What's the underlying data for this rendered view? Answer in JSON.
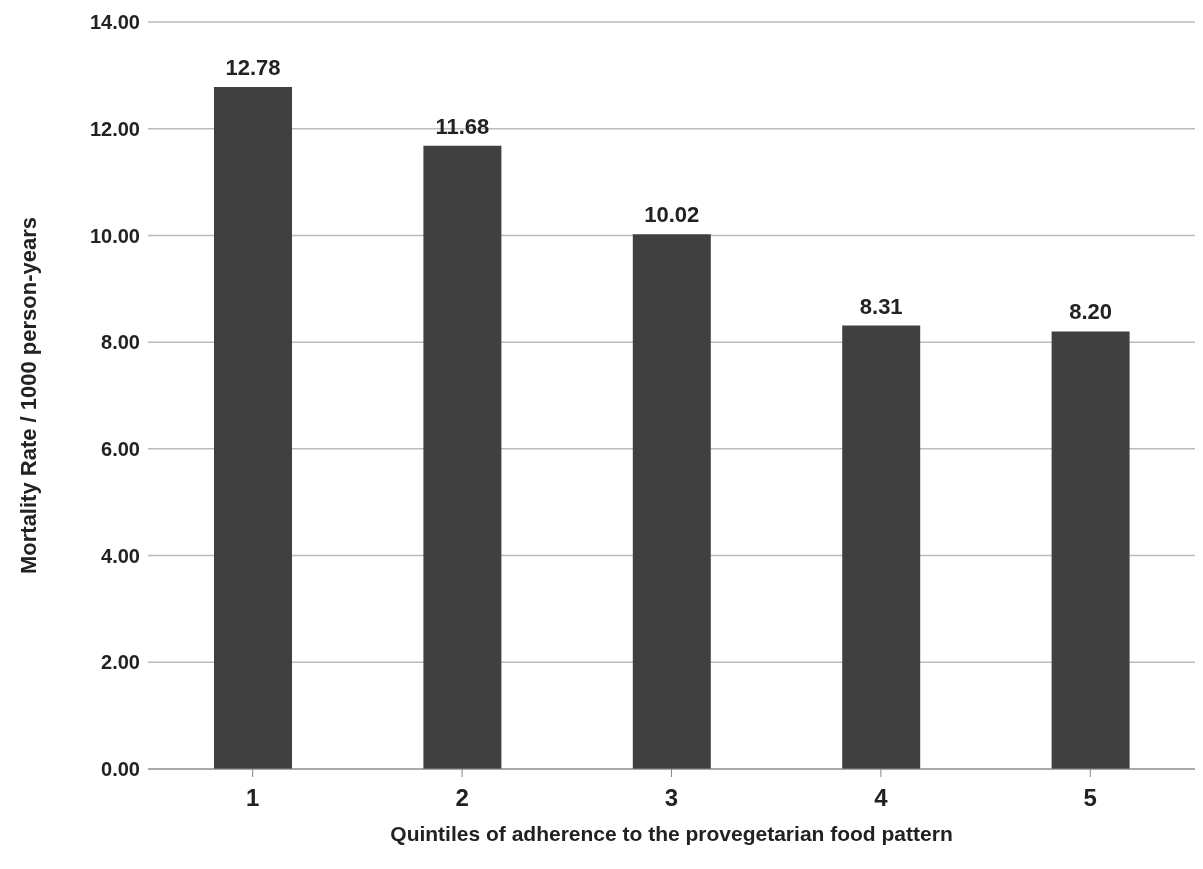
{
  "chart_data": {
    "type": "bar",
    "xlabel": "Quintiles of adherence to the provegetarian food pattern",
    "ylabel": "Mortality Rate / 1000 person-years",
    "categories": [
      "1",
      "2",
      "3",
      "4",
      "5"
    ],
    "values": [
      12.78,
      11.68,
      10.02,
      8.31,
      8.2
    ],
    "value_labels": [
      "12.78",
      "11.68",
      "10.02",
      "8.31",
      "8.20"
    ],
    "color": "#404040",
    "ylim": [
      0,
      14
    ],
    "yticks": [
      {
        "value": 0,
        "label": "0.00"
      },
      {
        "value": 2,
        "label": "2.00"
      },
      {
        "value": 4,
        "label": "4.00"
      },
      {
        "value": 6,
        "label": "6.00"
      },
      {
        "value": 8,
        "label": "8.00"
      },
      {
        "value": 10,
        "label": "10.00"
      },
      {
        "value": 12,
        "label": "12.00"
      },
      {
        "value": 14,
        "label": "14.00"
      }
    ],
    "grid": "y"
  }
}
